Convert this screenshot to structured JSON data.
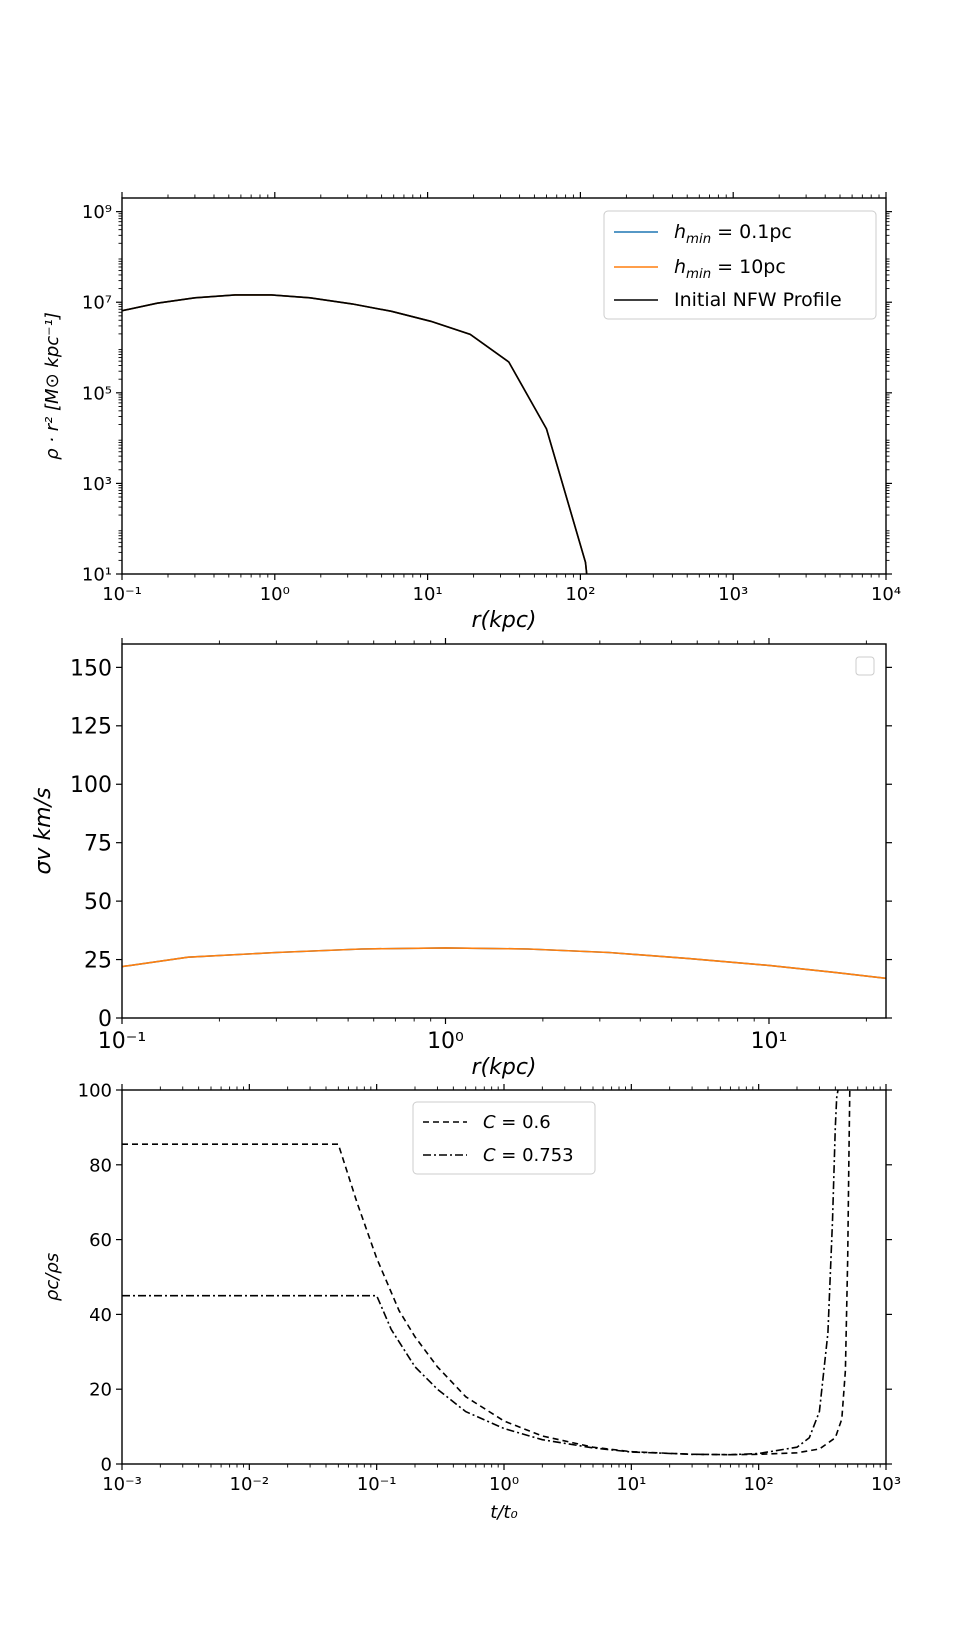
{
  "chart_data": [
    {
      "type": "line",
      "title": "",
      "xlabel": "r(kpc)",
      "ylabel": "ρ · r² [M⊙ kpc⁻¹]",
      "x_scale": "log",
      "y_scale": "log",
      "xlim": [
        0.1,
        10000
      ],
      "ylim": [
        10,
        2000000000.0
      ],
      "x_ticks": [
        0.1,
        1,
        10,
        100,
        1000,
        10000
      ],
      "x_tick_labels": [
        "10⁻¹",
        "10⁰",
        "10¹",
        "10²",
        "10³",
        "10⁴"
      ],
      "y_ticks": [
        10,
        1000,
        100000,
        10000000,
        1000000000
      ],
      "y_tick_labels": [
        "10¹",
        "10³",
        "10⁵",
        "10⁷",
        "10⁹"
      ],
      "legend": "top-right",
      "series": [
        {
          "name": "h_min = 0.1pc",
          "label_main": "h",
          "label_sub": "min",
          "label_tail": " = 0.1pc",
          "color": "#1f77b4",
          "dash": "",
          "x": [
            0.1,
            0.17,
            0.3,
            0.55,
            0.95,
            1.7,
            3.2,
            5.8,
            10.5,
            19,
            34,
            60,
            108,
            110
          ],
          "y": [
            6500000.0,
            9500000.0,
            12500000.0,
            14500000.0,
            14500000.0,
            12500000.0,
            9200000.0,
            6300000.0,
            3800000.0,
            1950000.0,
            480000.0,
            16000.0,
            18,
            10
          ]
        },
        {
          "name": "h_min = 10pc",
          "label_main": "h",
          "label_sub": "min",
          "label_tail": " = 10pc",
          "color": "#ff7f0e",
          "dash": "",
          "x": [
            0.1,
            0.17,
            0.3,
            0.55,
            0.95,
            1.7,
            3.2,
            5.8,
            10.5,
            19,
            34,
            60,
            108,
            110
          ],
          "y": [
            6500000.0,
            9500000.0,
            12500000.0,
            14500000.0,
            14500000.0,
            12500000.0,
            9200000.0,
            6300000.0,
            3800000.0,
            1950000.0,
            480000.0,
            16000.0,
            18,
            10
          ]
        },
        {
          "name": "Initial NFW Profile",
          "label_main": "Initial NFW Profile",
          "label_sub": "",
          "label_tail": "",
          "color": "#000000",
          "dash": "",
          "x": [
            0.1,
            0.17,
            0.3,
            0.55,
            0.95,
            1.7,
            3.2,
            5.8,
            10.5,
            19,
            34,
            60,
            108,
            110
          ],
          "y": [
            6500000.0,
            9500000.0,
            12500000.0,
            14500000.0,
            14500000.0,
            12500000.0,
            9200000.0,
            6300000.0,
            3800000.0,
            1950000.0,
            480000.0,
            16000.0,
            18,
            10
          ]
        }
      ]
    },
    {
      "type": "line",
      "title": "",
      "xlabel": "r(kpc)",
      "ylabel": "σv km/s",
      "x_scale": "log",
      "y_scale": "linear",
      "xlim": [
        0.1,
        23
      ],
      "ylim": [
        0,
        160
      ],
      "x_ticks": [
        0.1,
        1,
        10
      ],
      "x_tick_labels": [
        "10⁻¹",
        "10⁰",
        "10¹"
      ],
      "y_ticks": [
        0,
        25,
        50,
        75,
        100,
        125,
        150
      ],
      "y_tick_labels": [
        "0",
        "25",
        "50",
        "75",
        "100",
        "125",
        "150"
      ],
      "legend": "top-right (empty)",
      "series": [
        {
          "name": "",
          "color": "#1f77b4",
          "dash": "",
          "x": [
            0.1,
            0.16,
            0.3,
            0.55,
            1.0,
            1.8,
            3.2,
            5.6,
            10,
            16,
            23
          ],
          "y": [
            22,
            26,
            28,
            29.5,
            30,
            29.5,
            28,
            25.5,
            22.5,
            19.5,
            17
          ]
        },
        {
          "name": "",
          "color": "#ff7f0e",
          "dash": "",
          "x": [
            0.1,
            0.16,
            0.3,
            0.55,
            1.0,
            1.8,
            3.2,
            5.6,
            10,
            16,
            23
          ],
          "y": [
            22,
            26,
            28,
            29.5,
            30,
            29.5,
            28,
            25.5,
            22.5,
            19.5,
            17
          ]
        }
      ]
    },
    {
      "type": "line",
      "title": "",
      "xlabel": "t/t₀",
      "ylabel": "ρc/ρs",
      "x_scale": "log",
      "y_scale": "linear",
      "xlim": [
        0.001,
        1000
      ],
      "ylim": [
        0,
        100
      ],
      "x_ticks": [
        0.001,
        0.01,
        0.1,
        1,
        10,
        100,
        1000
      ],
      "x_tick_labels": [
        "10⁻³",
        "10⁻²",
        "10⁻¹",
        "10⁰",
        "10¹",
        "10²",
        "10³"
      ],
      "y_ticks": [
        0,
        20,
        40,
        60,
        80,
        100
      ],
      "y_tick_labels": [
        "0",
        "20",
        "40",
        "60",
        "80",
        "100"
      ],
      "legend": "top-center",
      "series": [
        {
          "name": "C = 0.6",
          "label_main": "C",
          "label_sub": "",
          "label_tail": " = 0.6",
          "color": "#000000",
          "dash": "6,4",
          "x": [
            0.001,
            0.05,
            0.07,
            0.1,
            0.15,
            0.2,
            0.3,
            0.5,
            1,
            2,
            5,
            10,
            30,
            60,
            100,
            200,
            300,
            400,
            450,
            480,
            500,
            510,
            520
          ],
          "y": [
            85.5,
            85.5,
            70,
            55,
            41,
            34,
            26,
            18,
            11.5,
            7.5,
            4.5,
            3.3,
            2.6,
            2.5,
            2.6,
            3.0,
            4.0,
            7,
            12,
            25,
            55,
            80,
            100
          ]
        },
        {
          "name": "C = 0.753",
          "label_main": "C",
          "label_sub": "",
          "label_tail": " = 0.753",
          "color": "#000000",
          "dash": "8,3,2,3",
          "x": [
            0.001,
            0.1,
            0.13,
            0.2,
            0.3,
            0.5,
            1,
            2,
            5,
            10,
            30,
            60,
            100,
            200,
            250,
            300,
            350,
            380,
            400,
            410,
            420
          ],
          "y": [
            45,
            45,
            36,
            26,
            20,
            14,
            9.5,
            6.5,
            4.3,
            3.2,
            2.6,
            2.5,
            2.8,
            4.5,
            7,
            14,
            35,
            65,
            90,
            98,
            100
          ]
        }
      ]
    }
  ]
}
